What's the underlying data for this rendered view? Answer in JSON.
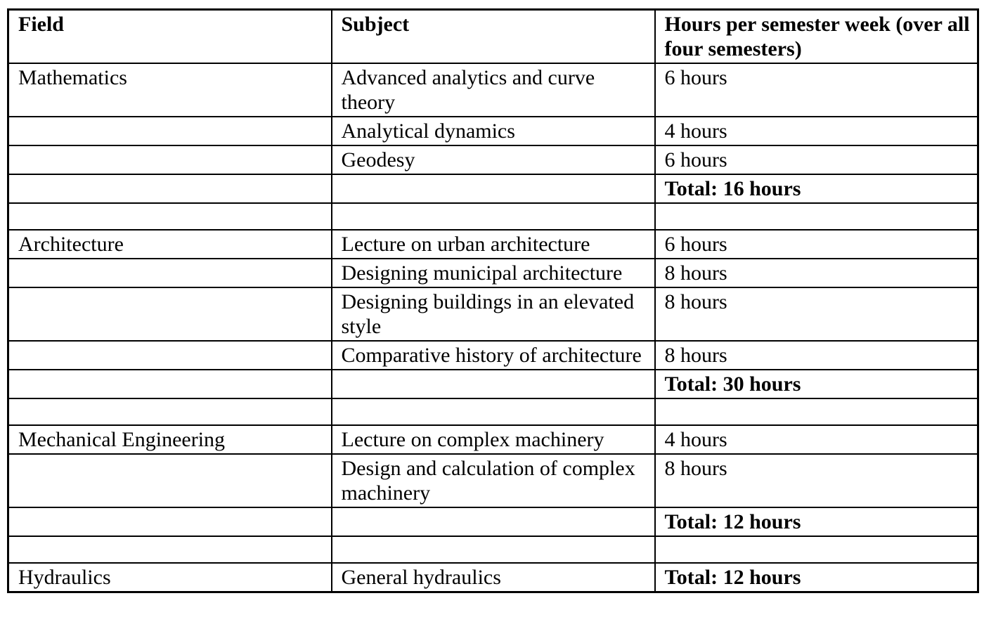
{
  "table": {
    "columns": [
      {
        "label": "Field"
      },
      {
        "label": "Subject"
      },
      {
        "label": "Hours per semester week (over all four semesters)"
      }
    ],
    "rows": [
      {
        "field": "Mathematics",
        "subject": "Advanced analytics and curve theory",
        "hours": "6 hours",
        "hours_class": ""
      },
      {
        "field": "",
        "subject": "Analytical dynamics",
        "hours": "4 hours",
        "hours_class": ""
      },
      {
        "field": "",
        "subject": "Geodesy",
        "hours": "6 hours",
        "hours_class": ""
      },
      {
        "field": "",
        "subject": "",
        "hours": "Total: 16 hours",
        "hours_class": "bold"
      },
      {
        "field": "",
        "subject": "",
        "hours": "",
        "hours_class": ""
      },
      {
        "field": "Architecture",
        "subject": "Lecture on urban architecture",
        "hours": "6 hours",
        "hours_class": ""
      },
      {
        "field": "",
        "subject": "Designing municipal architecture",
        "hours": "8 hours",
        "hours_class": ""
      },
      {
        "field": "",
        "subject": "Designing buildings in an elevated style",
        "hours": "8 hours",
        "hours_class": ""
      },
      {
        "field": "",
        "subject": "Comparative history of architecture",
        "hours": "8 hours",
        "hours_class": ""
      },
      {
        "field": "",
        "subject": "",
        "hours": "Total: 30 hours",
        "hours_class": "bold"
      },
      {
        "field": "",
        "subject": "",
        "hours": "",
        "hours_class": ""
      },
      {
        "field": "Mechanical Engineering",
        "subject": "Lecture on complex machinery",
        "hours": "4 hours",
        "hours_class": ""
      },
      {
        "field": "",
        "subject": "Design and calculation of complex machinery",
        "hours": "8 hours",
        "hours_class": ""
      },
      {
        "field": "",
        "subject": "",
        "hours": "Total: 12 hours",
        "hours_class": "bold"
      },
      {
        "field": "",
        "subject": "",
        "hours": "",
        "hours_class": ""
      },
      {
        "field": "Hydraulics",
        "subject": "General hydraulics",
        "hours": "Total: 12 hours",
        "hours_class": "bold"
      }
    ]
  }
}
